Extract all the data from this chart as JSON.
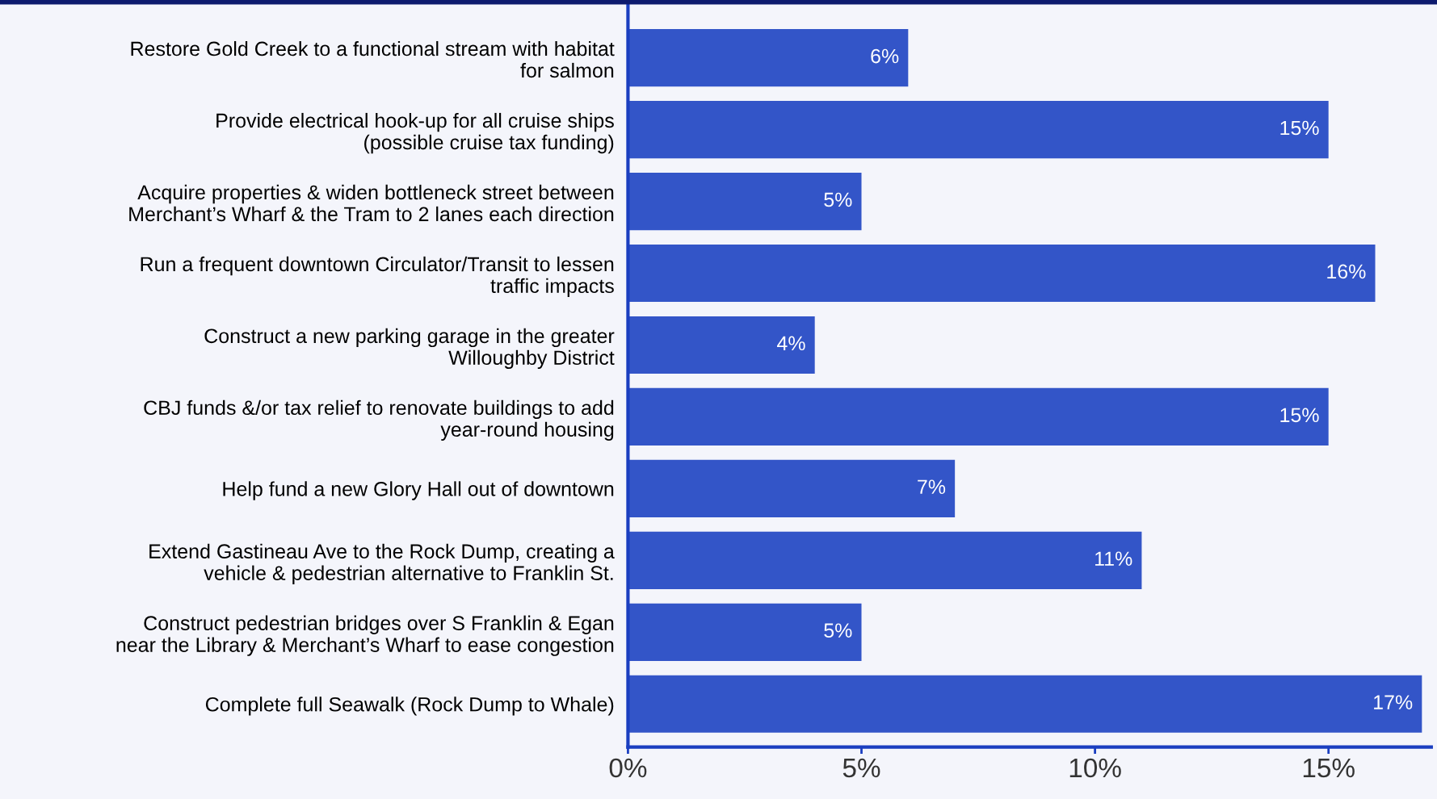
{
  "chart_data": {
    "type": "bar",
    "orientation": "horizontal",
    "categories": [
      "Restore Gold Creek to a functional stream with habitat\nfor salmon",
      "Provide electrical hook-up for all cruise ships\n(possible cruise tax funding)",
      "Acquire properties & widen bottleneck street between\nMerchant’s Wharf & the Tram to 2 lanes each direction",
      "Run a frequent downtown Circulator/Transit to lessen\ntraffic impacts",
      "Construct a new parking garage in the greater\nWilloughby District",
      "CBJ funds &/or tax relief to renovate buildings to add\nyear-round housing",
      "Help fund a new Glory Hall out of downtown",
      "Extend Gastineau Ave to the Rock Dump, creating a\nvehicle & pedestrian alternative to Franklin St.",
      "Construct pedestrian bridges over S Franklin & Egan\nnear the Library & Merchant’s Wharf to ease congestion",
      "Complete full Seawalk (Rock Dump to Whale)"
    ],
    "values": [
      6,
      15,
      5,
      16,
      4,
      15,
      7,
      11,
      5,
      17
    ],
    "value_labels": [
      "6%",
      "15%",
      "5%",
      "16%",
      "4%",
      "15%",
      "7%",
      "11%",
      "5%",
      "17%"
    ],
    "color": "#3355c8",
    "xlim": [
      0,
      17.2
    ],
    "xticks": [
      {
        "value": 0,
        "label": "0%"
      },
      {
        "value": 5,
        "label": "5%"
      },
      {
        "value": 10,
        "label": "10%"
      },
      {
        "value": 15,
        "label": "15%"
      }
    ],
    "grid": false
  }
}
